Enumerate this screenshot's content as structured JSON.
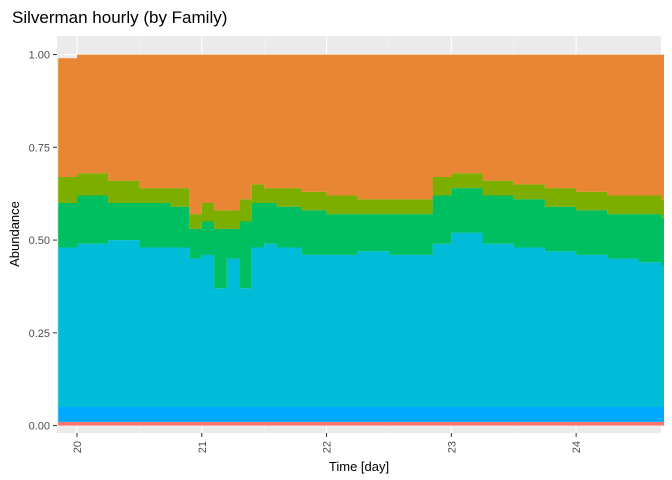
{
  "chart_data": {
    "type": "area",
    "title": "Silverman hourly (by Family)",
    "xlabel": "Time [day]",
    "ylabel": "Abundance",
    "xlim": [
      19.84,
      24.68
    ],
    "ylim": [
      -0.02,
      1.05
    ],
    "x_ticks": [
      20,
      21,
      22,
      23,
      24
    ],
    "x_tick_labels": [
      "20",
      "21",
      "22",
      "23",
      "24"
    ],
    "y_ticks": [
      0,
      0.25,
      0.5,
      0.75,
      1
    ],
    "y_tick_labels": [
      "0.00",
      "0.25",
      "0.50",
      "0.75",
      "1.00"
    ],
    "grid": true,
    "legend": "none",
    "stacking": "fill",
    "x": [
      19.85,
      20.0,
      20.25,
      20.5,
      20.75,
      20.9,
      21.0,
      21.1,
      21.2,
      21.3,
      21.4,
      21.5,
      21.6,
      21.8,
      22.0,
      22.25,
      22.5,
      22.75,
      22.85,
      23.0,
      23.25,
      23.5,
      23.75,
      24.0,
      24.25,
      24.5,
      24.68
    ],
    "series": [
      {
        "color": "#f8766d",
        "values": [
          0.01,
          0.01,
          0.01,
          0.01,
          0.01,
          0.01,
          0.01,
          0.01,
          0.01,
          0.01,
          0.01,
          0.01,
          0.01,
          0.01,
          0.01,
          0.01,
          0.01,
          0.01,
          0.01,
          0.01,
          0.01,
          0.01,
          0.01,
          0.01,
          0.01,
          0.01,
          0.01
        ]
      },
      {
        "color": "#00a9ff",
        "values": [
          0.04,
          0.04,
          0.04,
          0.04,
          0.04,
          0.04,
          0.04,
          0.04,
          0.04,
          0.04,
          0.04,
          0.04,
          0.04,
          0.04,
          0.04,
          0.04,
          0.04,
          0.04,
          0.04,
          0.04,
          0.04,
          0.04,
          0.04,
          0.04,
          0.04,
          0.04,
          0.04
        ]
      },
      {
        "color": "#00bcd8",
        "values": [
          0.43,
          0.44,
          0.45,
          0.43,
          0.43,
          0.4,
          0.41,
          0.32,
          0.4,
          0.32,
          0.43,
          0.44,
          0.43,
          0.41,
          0.41,
          0.42,
          0.41,
          0.41,
          0.44,
          0.47,
          0.44,
          0.43,
          0.42,
          0.41,
          0.4,
          0.39,
          0.38
        ]
      },
      {
        "color": "#00bf60",
        "values": [
          0.12,
          0.13,
          0.1,
          0.12,
          0.11,
          0.08,
          0.09,
          0.16,
          0.08,
          0.18,
          0.12,
          0.11,
          0.11,
          0.12,
          0.11,
          0.1,
          0.11,
          0.11,
          0.13,
          0.12,
          0.13,
          0.13,
          0.12,
          0.12,
          0.12,
          0.13,
          0.13
        ]
      },
      {
        "color": "#7cae00",
        "values": [
          0.07,
          0.06,
          0.06,
          0.04,
          0.05,
          0.04,
          0.05,
          0.05,
          0.05,
          0.06,
          0.05,
          0.04,
          0.05,
          0.05,
          0.05,
          0.04,
          0.04,
          0.04,
          0.05,
          0.04,
          0.04,
          0.04,
          0.05,
          0.05,
          0.05,
          0.05,
          0.05
        ]
      },
      {
        "color": "#e88633",
        "values": [
          0.32,
          0.32,
          0.34,
          0.36,
          0.36,
          0.43,
          0.4,
          0.42,
          0.42,
          0.39,
          0.35,
          0.36,
          0.36,
          0.37,
          0.38,
          0.39,
          0.39,
          0.39,
          0.33,
          0.32,
          0.34,
          0.35,
          0.36,
          0.37,
          0.38,
          0.38,
          0.39
        ]
      }
    ]
  }
}
